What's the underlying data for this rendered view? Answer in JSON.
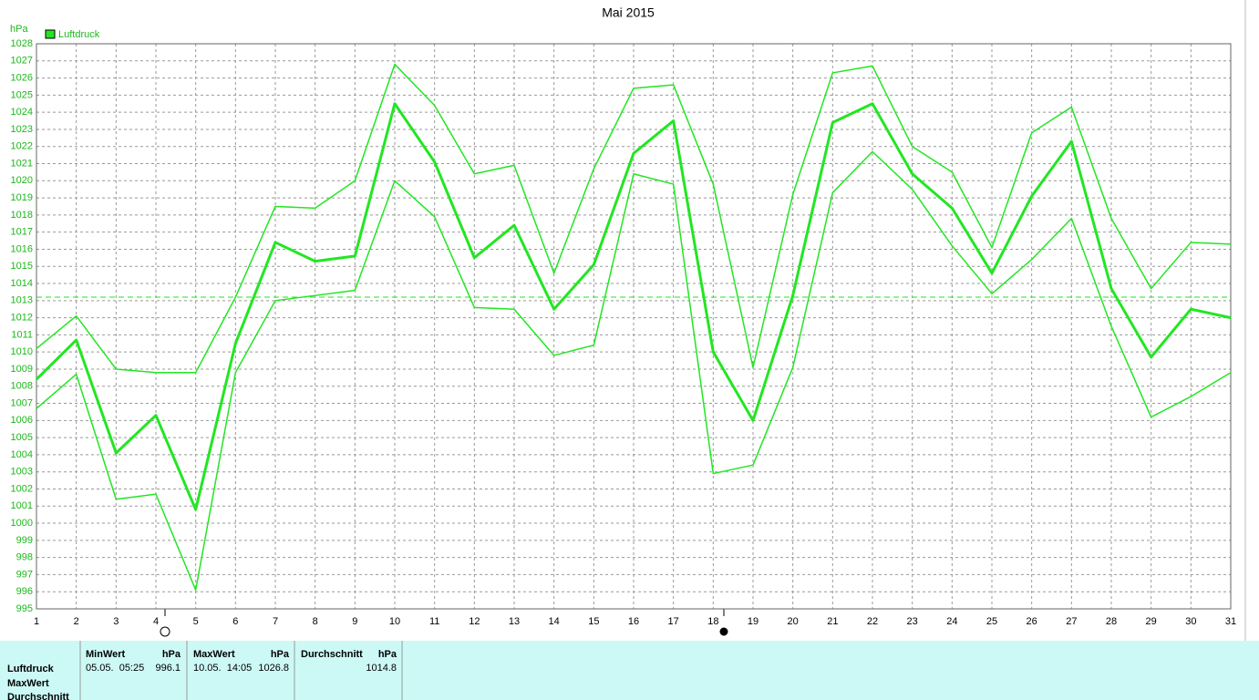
{
  "chart_data": {
    "type": "line",
    "title": "Mai 2015",
    "y_unit": "hPa",
    "x": [
      1,
      2,
      3,
      4,
      5,
      6,
      7,
      8,
      9,
      10,
      11,
      12,
      13,
      14,
      15,
      16,
      17,
      18,
      19,
      20,
      21,
      22,
      23,
      24,
      25,
      26,
      27,
      28,
      29,
      30,
      31
    ],
    "xlim": [
      1,
      31
    ],
    "xticks": [
      1,
      2,
      3,
      4,
      5,
      6,
      7,
      8,
      9,
      10,
      11,
      12,
      13,
      14,
      15,
      16,
      17,
      18,
      19,
      20,
      21,
      22,
      23,
      24,
      25,
      26,
      27,
      28,
      29,
      30,
      31
    ],
    "ylim": [
      995,
      1028
    ],
    "yticks": [
      995,
      996,
      997,
      998,
      999,
      1000,
      1001,
      1002,
      1003,
      1004,
      1005,
      1006,
      1007,
      1008,
      1009,
      1010,
      1011,
      1012,
      1013,
      1014,
      1015,
      1016,
      1017,
      1018,
      1019,
      1020,
      1021,
      1022,
      1023,
      1024,
      1025,
      1026,
      1027,
      1028
    ],
    "grid": true,
    "reference_line": 1013.2,
    "series": [
      {
        "name": "Luftdruck",
        "color": "#22e622",
        "width": 3,
        "values": [
          1008.4,
          1010.7,
          1004.1,
          1006.3,
          1000.8,
          1010.5,
          1016.4,
          1015.3,
          1015.6,
          1024.5,
          1021.1,
          1015.5,
          1017.4,
          1012.5,
          1015.1,
          1021.6,
          1023.5,
          1010.0,
          1006.0,
          1013.3,
          1023.4,
          1024.5,
          1020.4,
          1018.4,
          1014.6,
          1019.1,
          1022.3,
          1013.7,
          1009.7,
          1012.5,
          1012.0
        ]
      },
      {
        "color": "#22e622",
        "width": 1.5,
        "values": [
          1010.2,
          1012.1,
          1009.0,
          1008.8,
          1008.8,
          1013.2,
          1018.5,
          1018.4,
          1020.0,
          1026.8,
          1024.4,
          1020.4,
          1020.9,
          1014.6,
          1020.7,
          1025.4,
          1025.6,
          1019.8,
          1009.1,
          1019.2,
          1026.3,
          1026.7,
          1022.0,
          1020.5,
          1016.1,
          1022.8,
          1024.3,
          1017.8,
          1013.7,
          1016.4,
          1016.3
        ]
      },
      {
        "color": "#22e622",
        "width": 1.5,
        "values": [
          1006.7,
          1008.7,
          1001.4,
          1001.7,
          996.1,
          1008.8,
          1013.0,
          1013.3,
          1013.6,
          1020.0,
          1017.9,
          1012.6,
          1012.5,
          1009.8,
          1010.4,
          1020.4,
          1019.8,
          1002.9,
          1003.4,
          1009.1,
          1019.3,
          1021.7,
          1019.5,
          1016.2,
          1013.4,
          1015.4,
          1017.8,
          1011.5,
          1006.2,
          1007.4,
          1008.8
        ]
      }
    ]
  },
  "table": {
    "row_labels": [
      "Luftdruck",
      "MaxWert",
      "Durchschnitt"
    ],
    "columns": [
      {
        "header": "MinWert",
        "unit": "hPa",
        "date": "05.05.  05:25",
        "value": "996.1"
      },
      {
        "header": "MaxWert",
        "unit": "hPa",
        "date": "10.05.  14:05",
        "value": "1026.8"
      },
      {
        "header": "Durchschnitt",
        "unit": "hPa",
        "value": "1014.8"
      }
    ]
  }
}
